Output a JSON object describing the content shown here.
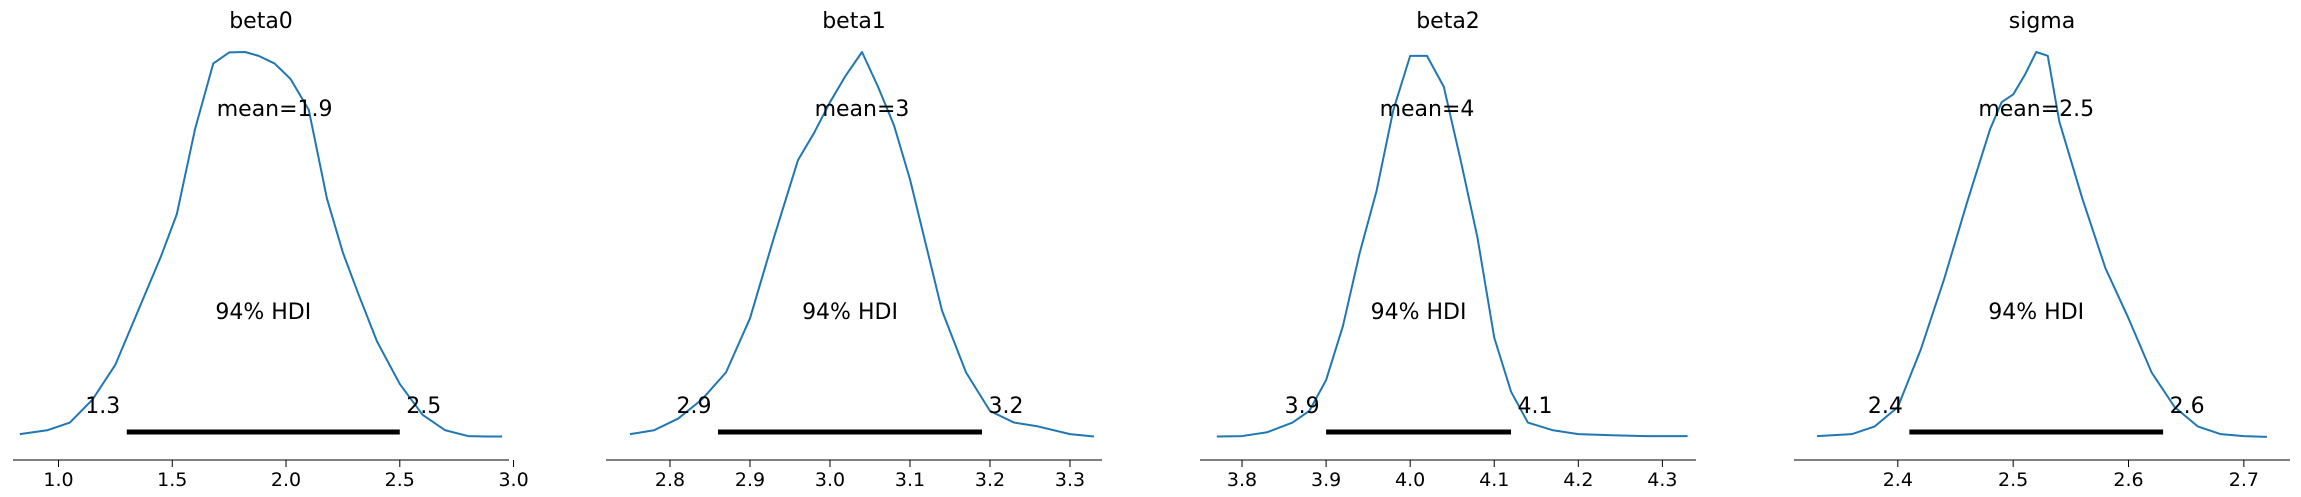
{
  "chart_data": [
    {
      "type": "line",
      "title": "beta0",
      "xlim": [
        0.8,
        2.98
      ],
      "ticks": [
        1.0,
        1.5,
        2.0,
        2.5,
        3.0
      ],
      "tick_labels": [
        "1.0",
        "1.5",
        "2.0",
        "2.5",
        "3.0"
      ],
      "mean_label": "mean=1.9",
      "hdi_label": "94% HDI",
      "hdi": [
        1.3,
        2.5
      ],
      "hdi_low_label": "1.3",
      "hdi_high_label": "2.5",
      "line_color": "#1f77b4",
      "kde": {
        "x": [
          0.83,
          0.95,
          1.05,
          1.15,
          1.25,
          1.35,
          1.45,
          1.52,
          1.6,
          1.68,
          1.75,
          1.82,
          1.88,
          1.95,
          2.02,
          2.1,
          2.18,
          2.25,
          2.32,
          2.4,
          2.5,
          2.6,
          2.7,
          2.8,
          2.88,
          2.95
        ],
        "y": [
          0.01,
          0.02,
          0.04,
          0.1,
          0.19,
          0.33,
          0.47,
          0.58,
          0.8,
          0.97,
          0.999,
          1.0,
          0.99,
          0.97,
          0.93,
          0.85,
          0.62,
          0.48,
          0.37,
          0.25,
          0.14,
          0.06,
          0.02,
          0.005,
          0.004,
          0.004
        ]
      }
    },
    {
      "type": "line",
      "title": "beta1",
      "xlim": [
        2.72,
        3.34
      ],
      "ticks": [
        2.8,
        2.9,
        3.0,
        3.1,
        3.2,
        3.3
      ],
      "tick_labels": [
        "2.8",
        "2.9",
        "3.0",
        "3.1",
        "3.2",
        "3.3"
      ],
      "mean_label": "mean=3",
      "hdi_label": "94% HDI",
      "hdi": [
        2.86,
        3.19
      ],
      "hdi_low_label": "2.9",
      "hdi_high_label": "3.2",
      "line_color": "#1f77b4",
      "kde": {
        "x": [
          2.75,
          2.78,
          2.81,
          2.84,
          2.87,
          2.9,
          2.93,
          2.96,
          2.98,
          3.0,
          3.02,
          3.04,
          3.06,
          3.08,
          3.1,
          3.12,
          3.14,
          3.17,
          3.2,
          3.23,
          3.26,
          3.3,
          3.33
        ],
        "y": [
          0.01,
          0.02,
          0.05,
          0.1,
          0.17,
          0.31,
          0.52,
          0.72,
          0.79,
          0.87,
          0.94,
          1.0,
          0.91,
          0.81,
          0.67,
          0.5,
          0.33,
          0.17,
          0.07,
          0.04,
          0.03,
          0.01,
          0.004
        ]
      }
    },
    {
      "type": "line",
      "title": "beta2",
      "xlim": [
        3.75,
        4.34
      ],
      "ticks": [
        3.8,
        3.9,
        4.0,
        4.1,
        4.2,
        4.3
      ],
      "tick_labels": [
        "3.8",
        "3.9",
        "4.0",
        "4.1",
        "4.2",
        "4.3"
      ],
      "mean_label": "mean=4",
      "hdi_label": "94% HDI",
      "hdi": [
        3.9,
        4.12
      ],
      "hdi_low_label": "3.9",
      "hdi_high_label": "4.1",
      "line_color": "#1f77b4",
      "kde": {
        "x": [
          3.77,
          3.8,
          3.83,
          3.86,
          3.88,
          3.9,
          3.92,
          3.94,
          3.96,
          3.98,
          4.0,
          4.02,
          4.04,
          4.06,
          4.08,
          4.1,
          4.12,
          4.14,
          4.17,
          4.2,
          4.24,
          4.28,
          4.33
        ],
        "y": [
          0.004,
          0.005,
          0.015,
          0.04,
          0.07,
          0.15,
          0.29,
          0.48,
          0.64,
          0.85,
          0.99,
          0.99,
          0.91,
          0.72,
          0.52,
          0.26,
          0.12,
          0.04,
          0.02,
          0.01,
          0.007,
          0.005,
          0.005
        ]
      }
    },
    {
      "type": "line",
      "title": "sigma",
      "xlim": [
        2.31,
        2.74
      ],
      "ticks": [
        2.4,
        2.5,
        2.6,
        2.7
      ],
      "tick_labels": [
        "2.4",
        "2.5",
        "2.6",
        "2.7"
      ],
      "mean_label": "mean=2.5",
      "hdi_label": "94% HDI",
      "hdi": [
        2.41,
        2.63
      ],
      "hdi_low_label": "2.4",
      "hdi_high_label": "2.6",
      "line_color": "#1f77b4",
      "kde": {
        "x": [
          2.33,
          2.36,
          2.38,
          2.4,
          2.42,
          2.44,
          2.46,
          2.48,
          2.49,
          2.5,
          2.51,
          2.52,
          2.53,
          2.54,
          2.56,
          2.58,
          2.6,
          2.62,
          2.64,
          2.66,
          2.68,
          2.7,
          2.72
        ],
        "y": [
          0.005,
          0.01,
          0.03,
          0.08,
          0.23,
          0.41,
          0.61,
          0.8,
          0.87,
          0.89,
          0.94,
          1.0,
          0.99,
          0.82,
          0.62,
          0.44,
          0.31,
          0.17,
          0.08,
          0.03,
          0.01,
          0.005,
          0.003
        ]
      }
    }
  ]
}
